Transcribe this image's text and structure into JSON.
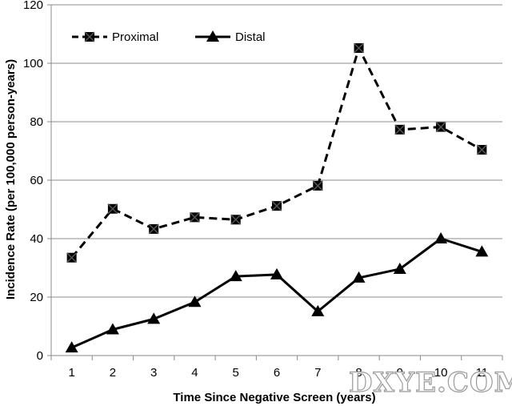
{
  "chart_data": {
    "type": "line",
    "title": "",
    "xlabel": "Time Since Negative Screen (years)",
    "ylabel": "Incidence Rate (per 100,000 person-years)",
    "categories": [
      "1",
      "2",
      "3",
      "4",
      "5",
      "6",
      "7",
      "8",
      "9",
      "10",
      "11"
    ],
    "ylim": [
      0,
      120
    ],
    "yticks": [
      "0",
      "20",
      "40",
      "60",
      "80",
      "100",
      "120"
    ],
    "grid": true,
    "legend_position": "top-left",
    "series": [
      {
        "name": "Proximal",
        "marker": "square",
        "line_style": "dashed",
        "color": "#000000",
        "values": [
          33.5,
          50.2,
          43.3,
          47.3,
          46.5,
          51.2,
          58.1,
          105.2,
          77.3,
          78.2,
          70.4
        ]
      },
      {
        "name": "Distal",
        "marker": "triangle",
        "line_style": "solid",
        "color": "#000000",
        "values": [
          2.7,
          8.9,
          12.5,
          18.3,
          27.1,
          27.7,
          15.1,
          26.6,
          29.6,
          40.0,
          35.5
        ]
      }
    ]
  },
  "watermark": "DXYE.COM"
}
